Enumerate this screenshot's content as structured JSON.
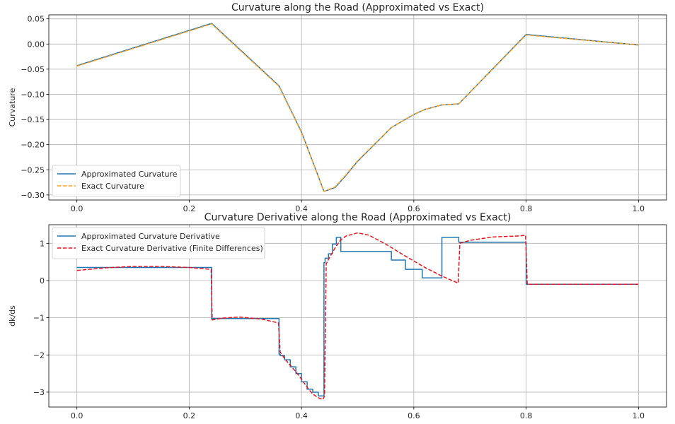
{
  "chart_data": [
    {
      "type": "line",
      "title": "Curvature along the Road (Approximated vs Exact)",
      "xlabel": "",
      "ylabel": "Curvature",
      "xlim": [
        -0.05,
        1.05
      ],
      "ylim": [
        -0.31,
        0.058
      ],
      "xticks": [
        0.0,
        0.2,
        0.4,
        0.6,
        0.8,
        1.0
      ],
      "xtick_labels": [
        "0.0",
        "0.2",
        "0.4",
        "0.6",
        "0.8",
        "1.0"
      ],
      "yticks": [
        0.05,
        0.0,
        -0.05,
        -0.1,
        -0.15,
        -0.2,
        -0.25,
        -0.3
      ],
      "ytick_labels": [
        "0.05",
        "0.00",
        "−0.05",
        "−0.10",
        "−0.15",
        "−0.20",
        "−0.25",
        "−0.30"
      ],
      "grid": true,
      "legend_position": "lower-left",
      "series": [
        {
          "name": "Approximated Curvature",
          "color": "#1f77b4",
          "style": "solid",
          "x": [
            0.0,
            0.24,
            0.36,
            0.4,
            0.44,
            0.46,
            0.48,
            0.5,
            0.56,
            0.6,
            0.62,
            0.65,
            0.68,
            0.8,
            1.0
          ],
          "y": [
            -0.043,
            0.041,
            -0.083,
            -0.175,
            -0.293,
            -0.285,
            -0.26,
            -0.233,
            -0.166,
            -0.14,
            -0.13,
            -0.121,
            -0.119,
            0.019,
            -0.002
          ]
        },
        {
          "name": "Exact Curvature",
          "color": "#ff9f1c",
          "style": "dashed",
          "x": [
            0.0,
            0.24,
            0.36,
            0.4,
            0.44,
            0.46,
            0.48,
            0.5,
            0.56,
            0.6,
            0.62,
            0.65,
            0.68,
            0.8,
            1.0
          ],
          "y": [
            -0.044,
            0.04,
            -0.084,
            -0.176,
            -0.293,
            -0.284,
            -0.259,
            -0.232,
            -0.166,
            -0.14,
            -0.13,
            -0.121,
            -0.119,
            0.018,
            -0.002
          ]
        }
      ]
    },
    {
      "type": "line",
      "title": "Curvature Derivative along the Road (Approximated vs Exact)",
      "xlabel": "",
      "ylabel": "dk/ds",
      "xlim": [
        -0.05,
        1.05
      ],
      "ylim": [
        -3.4,
        1.5
      ],
      "xticks": [
        0.0,
        0.2,
        0.4,
        0.6,
        0.8,
        1.0
      ],
      "xtick_labels": [
        "0.0",
        "0.2",
        "0.4",
        "0.6",
        "0.8",
        "1.0"
      ],
      "yticks": [
        1,
        0,
        -1,
        -2,
        -3
      ],
      "ytick_labels": [
        "1",
        "0",
        "−1",
        "−2",
        "−3"
      ],
      "grid": true,
      "legend_position": "upper-left",
      "series": [
        {
          "name": "Approximated Curvature Derivative",
          "color": "#1f77b4",
          "style": "solid",
          "x": [
            0.0,
            0.24,
            0.24,
            0.242,
            0.242,
            0.36,
            0.36,
            0.362,
            0.362,
            0.37,
            0.37,
            0.38,
            0.38,
            0.39,
            0.39,
            0.4,
            0.4,
            0.41,
            0.41,
            0.42,
            0.42,
            0.43,
            0.43,
            0.44,
            0.44,
            0.442,
            0.442,
            0.448,
            0.448,
            0.455,
            0.455,
            0.462,
            0.462,
            0.47,
            0.47,
            0.56,
            0.56,
            0.585,
            0.585,
            0.615,
            0.615,
            0.65,
            0.65,
            0.68,
            0.68,
            0.8,
            0.8,
            0.802,
            0.802,
            1.0
          ],
          "y": [
            0.35,
            0.35,
            -1.04,
            -1.04,
            -1.02,
            -1.02,
            -1.98,
            -1.98,
            -2.02,
            -2.02,
            -2.13,
            -2.13,
            -2.32,
            -2.32,
            -2.5,
            -2.5,
            -2.72,
            -2.72,
            -2.92,
            -2.92,
            -3.0,
            -3.0,
            -3.1,
            -3.1,
            0.48,
            0.48,
            0.6,
            0.6,
            0.72,
            0.72,
            0.98,
            0.98,
            1.16,
            1.16,
            0.78,
            0.78,
            0.55,
            0.55,
            0.3,
            0.3,
            0.07,
            0.07,
            1.16,
            1.16,
            1.03,
            1.03,
            -0.1,
            -0.1,
            -0.1,
            -0.1
          ]
        },
        {
          "name": "Exact Curvature Derivative (Finite Differences)",
          "color": "#e8141f",
          "style": "dashed",
          "x": [
            0.0,
            0.05,
            0.1,
            0.15,
            0.2,
            0.239,
            0.241,
            0.26,
            0.29,
            0.33,
            0.359,
            0.362,
            0.37,
            0.38,
            0.39,
            0.4,
            0.41,
            0.42,
            0.43,
            0.438,
            0.441,
            0.444,
            0.45,
            0.46,
            0.47,
            0.48,
            0.5,
            0.52,
            0.55,
            0.58,
            0.62,
            0.65,
            0.679,
            0.682,
            0.7,
            0.74,
            0.79,
            0.799,
            0.802,
            0.9,
            1.0
          ],
          "y": [
            0.27,
            0.34,
            0.38,
            0.38,
            0.35,
            0.3,
            -1.06,
            -1.01,
            -0.98,
            -1.04,
            -1.14,
            -1.92,
            -2.1,
            -2.28,
            -2.45,
            -2.65,
            -2.87,
            -3.05,
            -3.15,
            -3.2,
            -3.1,
            0.45,
            0.62,
            0.88,
            1.1,
            1.2,
            1.28,
            1.22,
            0.98,
            0.7,
            0.35,
            0.12,
            -0.07,
            1.0,
            1.08,
            1.17,
            1.2,
            1.22,
            -0.1,
            -0.1,
            -0.1
          ]
        }
      ]
    }
  ]
}
